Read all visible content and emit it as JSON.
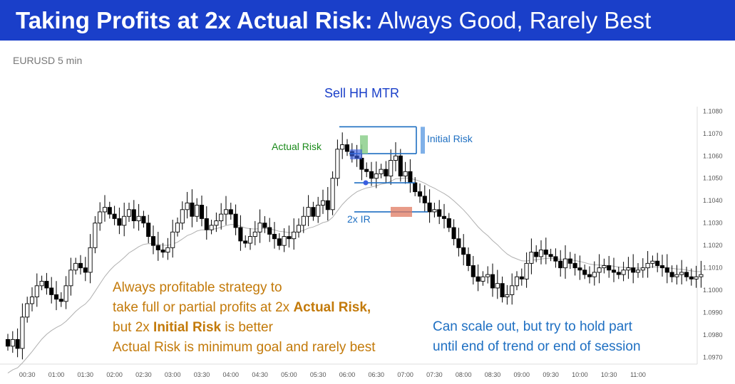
{
  "header": {
    "title_bold": "Taking Profits at 2x Actual Risk:",
    "title_rest": " Always Good, Rarely Best"
  },
  "chart_label": "EURUSD 5 min",
  "annotations": {
    "setup": "Sell HH MTR",
    "actual_risk": "Actual Risk",
    "initial_risk": "Initial Risk",
    "two_x_ir": "2x IR"
  },
  "notes": {
    "left": {
      "line1": "Always profitable strategy to",
      "line2_pre": "take full or partial profits at 2x ",
      "line2_bold": "Actual Risk,",
      "line3_pre": "but 2x ",
      "line3_bold": "Initial Risk",
      "line3_post": " is better",
      "line4": "Actual Risk is minimum goal and rarely best"
    },
    "right": {
      "line1": "Can scale out, but try to hold part",
      "line2": "until end of trend or end of session"
    }
  },
  "colors": {
    "header_bg": "#1a3fc9",
    "orange_text": "#c37a0a",
    "blue_text": "#1e6fc2",
    "green_text": "#1a8a1a",
    "setup_text": "#1a3fc9"
  },
  "chart_data": {
    "type": "candlestick",
    "symbol": "EURUSD",
    "timeframe": "5 min",
    "x_ticks": [
      "00:30",
      "01:00",
      "01:30",
      "02:00",
      "02:30",
      "03:00",
      "03:30",
      "04:00",
      "04:30",
      "05:00",
      "05:30",
      "06:00",
      "06:30",
      "07:00",
      "07:30",
      "08:00",
      "08:30",
      "09:00",
      "09:30",
      "10:00",
      "10:30",
      "11:00"
    ],
    "y_ticks": [
      "1.0970",
      "1.0980",
      "1.0990",
      "1.1000",
      "1.1010",
      "1.1020",
      "1.1030",
      "1.1040",
      "1.1050",
      "1.1060",
      "1.1070",
      "1.1080"
    ],
    "ylim": [
      1.0967,
      1.1082
    ],
    "grid": false,
    "levels": {
      "sell_high": 1.1073,
      "entry": 1.1061,
      "target_2x_actual_risk": 1.1048,
      "target_2x_initial_risk": 1.1035
    },
    "closes": [
      1.0975,
      1.0978,
      1.0974,
      1.0988,
      1.0994,
      1.0997,
      1.1002,
      1.1004,
      1.1001,
      1.0998,
      1.0996,
      1.0995,
      1.1002,
      1.1009,
      1.1012,
      1.101,
      1.1008,
      1.1019,
      1.103,
      1.1035,
      1.1037,
      1.1034,
      1.1032,
      1.1029,
      1.1033,
      1.1036,
      1.1031,
      1.1033,
      1.103,
      1.1024,
      1.102,
      1.1018,
      1.1017,
      1.1019,
      1.1026,
      1.103,
      1.1036,
      1.1039,
      1.1033,
      1.1038,
      1.1032,
      1.1027,
      1.1029,
      1.1031,
      1.1034,
      1.1036,
      1.1034,
      1.1028,
      1.1022,
      1.1021,
      1.1024,
      1.1026,
      1.103,
      1.1028,
      1.1025,
      1.1023,
      1.102,
      1.1024,
      1.1023,
      1.1026,
      1.1029,
      1.1033,
      1.1037,
      1.1033,
      1.1038,
      1.104,
      1.1036,
      1.105,
      1.1063,
      1.1065,
      1.1062,
      1.106,
      1.1059,
      1.1054,
      1.1053,
      1.105,
      1.1052,
      1.1054,
      1.1051,
      1.1058,
      1.106,
      1.1051,
      1.1053,
      1.1048,
      1.1044,
      1.1042,
      1.1039,
      1.1035,
      1.1036,
      1.1033,
      1.1032,
      1.1028,
      1.1023,
      1.1019,
      1.1016,
      1.1011,
      1.1006,
      1.1004,
      1.1006,
      1.1007,
      1.1001,
      1.1003,
      1.0997,
      1.0998,
      1.1002,
      1.1006,
      1.1005,
      1.1012,
      1.1017,
      1.1015,
      1.1018,
      1.1016,
      1.1015,
      1.1013,
      1.101,
      1.1014,
      1.1012,
      1.101,
      1.1009,
      1.1007,
      1.1006,
      1.1008,
      1.101,
      1.1011,
      1.1009,
      1.1008,
      1.1007,
      1.1009,
      1.101,
      1.1008,
      1.1009,
      1.101,
      1.1012,
      1.1013,
      1.1011,
      1.101,
      1.1008,
      1.1006,
      1.1007,
      1.1008,
      1.1006,
      1.1005,
      1.1006,
      1.1007
    ]
  }
}
